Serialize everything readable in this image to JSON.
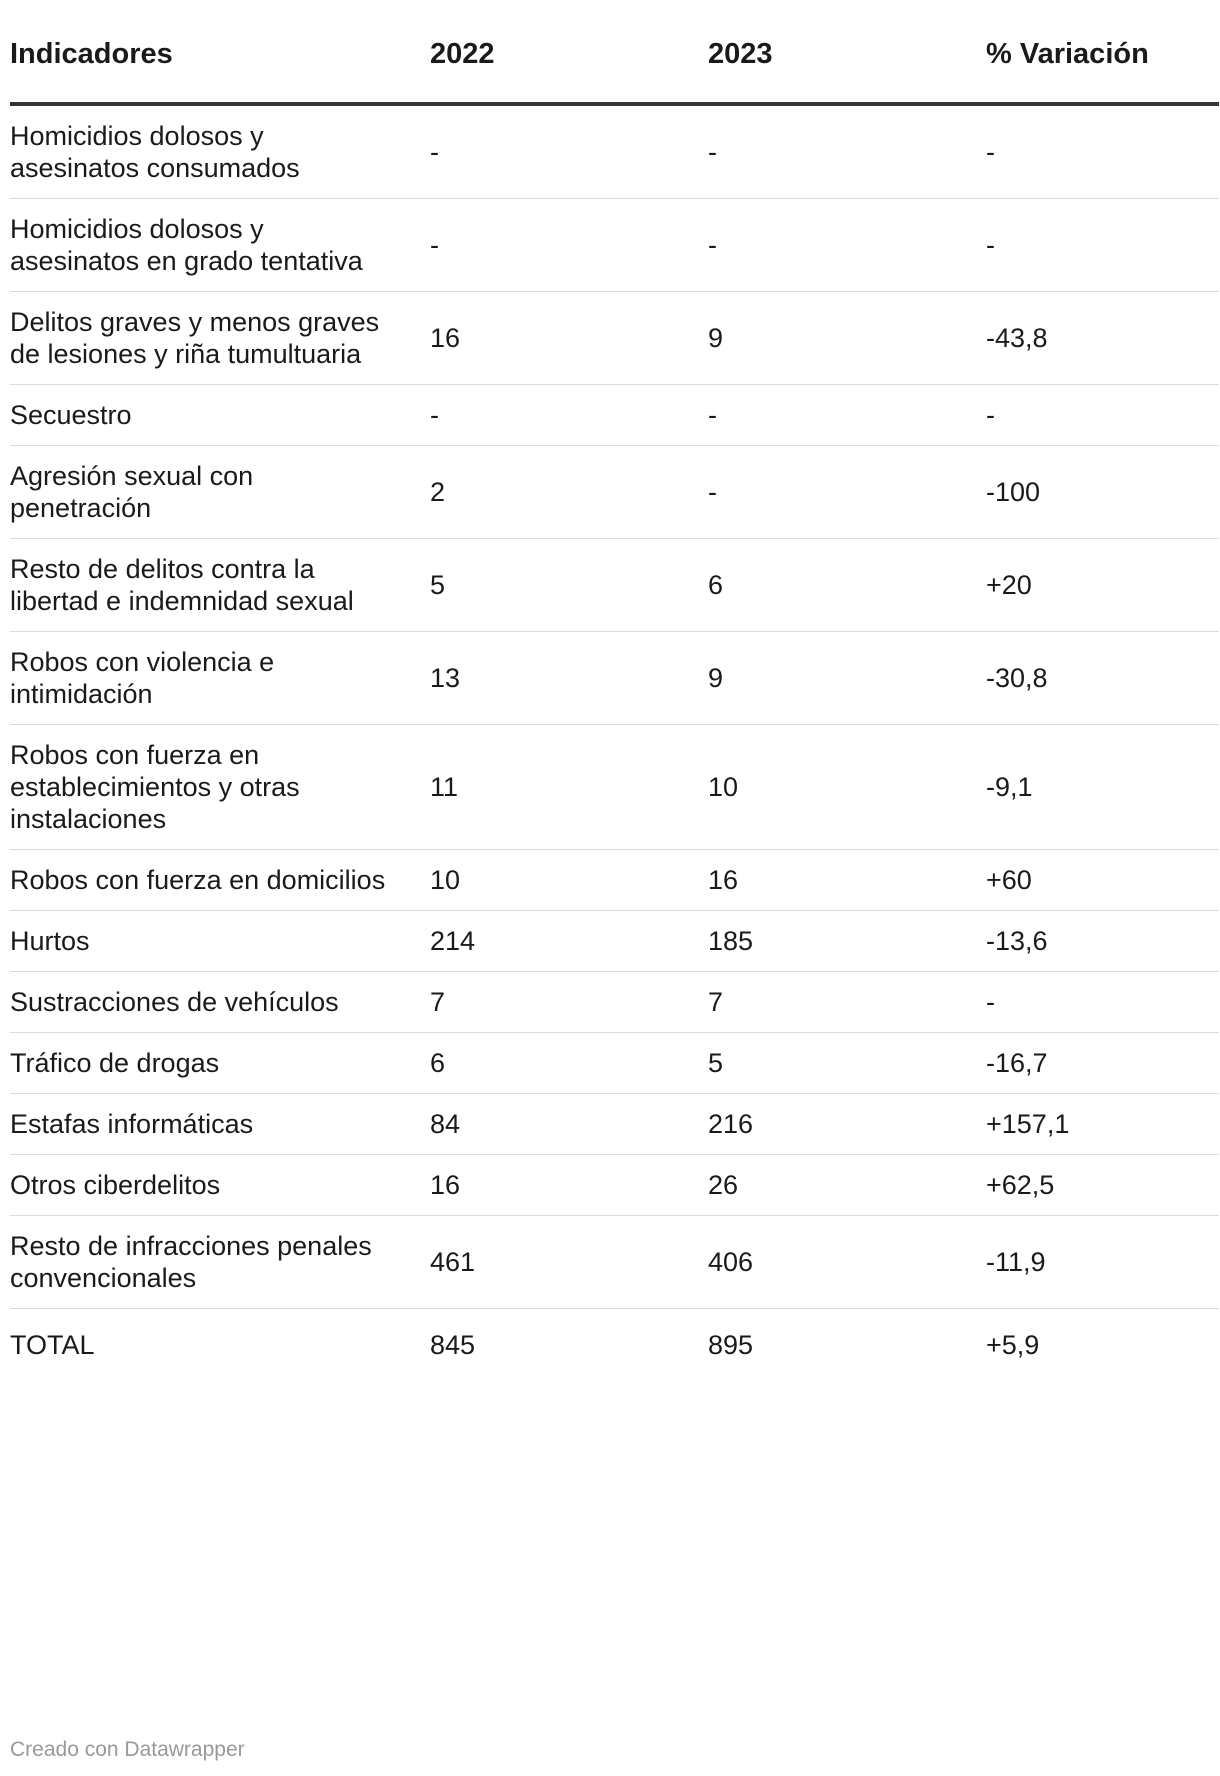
{
  "table": {
    "headers": [
      "Indicadores",
      "2022",
      "2023",
      "% Variación"
    ],
    "rows": [
      [
        "Homicidios dolosos y asesinatos consumados",
        "-",
        "-",
        "-"
      ],
      [
        "Homicidios dolosos y asesinatos en grado tentativa",
        "-",
        "-",
        "-"
      ],
      [
        "Delitos graves y menos graves de lesiones y riña tumultuaria",
        "16",
        "9",
        "-43,8"
      ],
      [
        "Secuestro",
        "-",
        "-",
        "-"
      ],
      [
        "Agresión sexual con penetración",
        "2",
        "-",
        "-100"
      ],
      [
        "Resto de delitos contra la libertad e indemnidad sexual",
        "5",
        "6",
        "+20"
      ],
      [
        "Robos con violencia e intimidación",
        "13",
        "9",
        "-30,8"
      ],
      [
        "Robos con fuerza en establecimientos y otras instalaciones",
        "11",
        "10",
        "-9,1"
      ],
      [
        "Robos con fuerza en domicilios",
        "10",
        "16",
        "+60"
      ],
      [
        "Hurtos",
        "214",
        "185",
        "-13,6"
      ],
      [
        "Sustracciones de vehículos",
        "7",
        "7",
        "-"
      ],
      [
        "Tráfico de drogas",
        "6",
        "5",
        "-16,7"
      ],
      [
        "Estafas informáticas",
        "84",
        "216",
        "+157,1"
      ],
      [
        "Otros ciberdelitos",
        "16",
        "26",
        "+62,5"
      ],
      [
        "Resto de infracciones penales convencionales",
        "461",
        "406",
        "-11,9"
      ],
      [
        "TOTAL",
        "845",
        "895",
        "+5,9"
      ]
    ]
  },
  "footer": {
    "credit": "Creado con Datawrapper"
  },
  "colors": {
    "text": "#1a1a1a",
    "header_rule": "#333333",
    "row_rule": "#dcdcdc",
    "footer_text": "#999999"
  }
}
